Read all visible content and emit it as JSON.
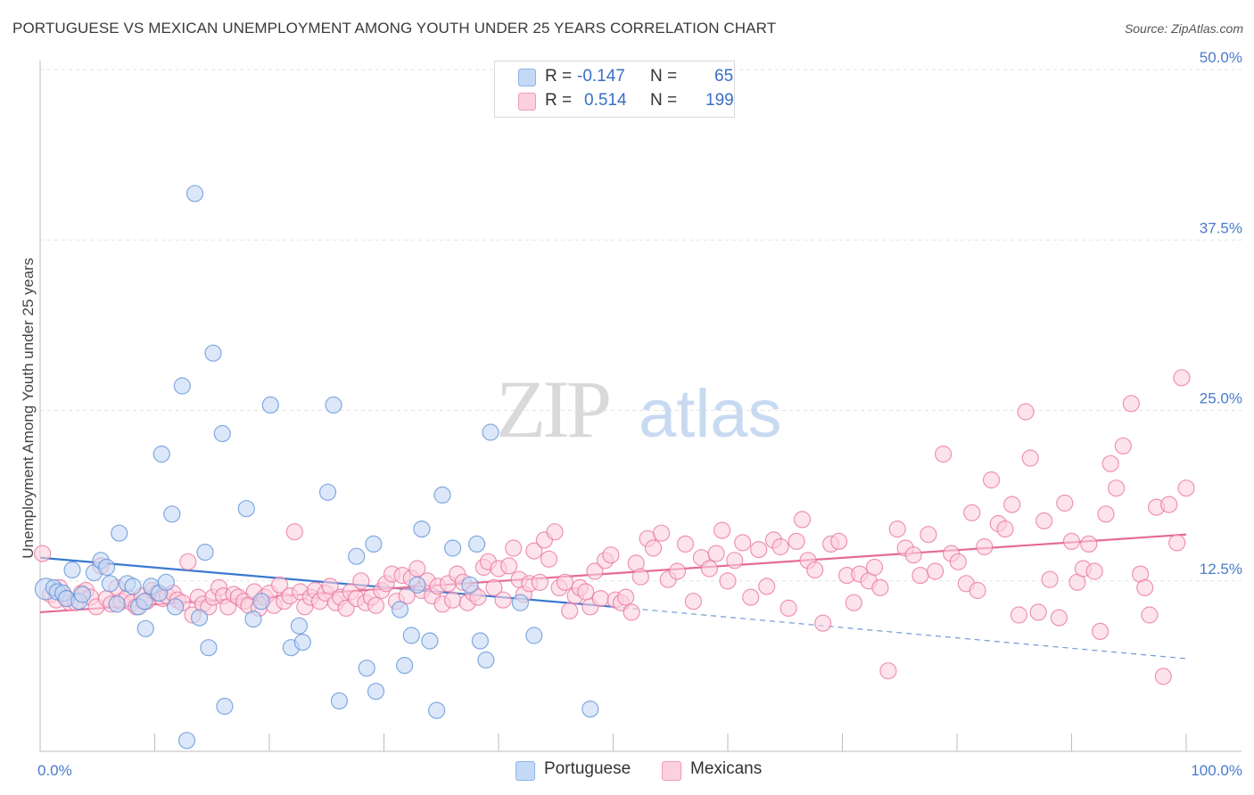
{
  "header": {
    "title": "PORTUGUESE VS MEXICAN UNEMPLOYMENT AMONG YOUTH UNDER 25 YEARS CORRELATION CHART",
    "source": "Source: ZipAtlas.com"
  },
  "legend": {
    "rows": [
      {
        "r_label": "R =",
        "r_value": "-0.147",
        "n_label": "N =",
        "n_value": "65",
        "color": "#8ab4e8",
        "fill": "#c4d9f5"
      },
      {
        "r_label": "R =",
        "r_value": "0.514",
        "n_label": "N =",
        "n_value": "199",
        "color": "#f09ab8",
        "fill": "#fcd0de"
      }
    ],
    "bottom": [
      {
        "label": "Portuguese",
        "color": "#8ab4e8",
        "fill": "#c4d9f5"
      },
      {
        "label": "Mexicans",
        "color": "#f09ab8",
        "fill": "#fcd0de"
      }
    ]
  },
  "watermark": {
    "zip": "ZIP",
    "atlas": "atlas"
  },
  "chart_data": {
    "type": "scatter",
    "title": "PORTUGUESE VS MEXICAN UNEMPLOYMENT AMONG YOUTH UNDER 25 YEARS CORRELATION CHART",
    "xlabel": "",
    "ylabel": "Unemployment Among Youth under 25 years",
    "xlim": [
      0,
      100
    ],
    "ylim": [
      0,
      50
    ],
    "x_tick_labels": [
      "0.0%",
      "100.0%"
    ],
    "y_ticks": [
      12.5,
      25.0,
      37.5,
      50.0
    ],
    "y_tick_labels": [
      "12.5%",
      "25.0%",
      "37.5%",
      "50.0%"
    ],
    "grid": true,
    "legend_position": "top-center",
    "series": [
      {
        "name": "Portuguese",
        "color": "#5b8fd6",
        "fill": "#c4d9f5",
        "trend": {
          "x0": 0,
          "y0": 14.2,
          "x1": 50,
          "y1": 10.6,
          "dash_to_x": 100,
          "dash_to_y": 6.8
        },
        "points": [
          [
            0.5,
            11.9
          ],
          [
            1.2,
            12.0
          ],
          [
            1.5,
            11.7
          ],
          [
            2.0,
            11.6
          ],
          [
            2.3,
            11.2
          ],
          [
            2.8,
            13.3
          ],
          [
            3.4,
            11.0
          ],
          [
            3.7,
            11.5
          ],
          [
            4.7,
            13.1
          ],
          [
            5.3,
            14.0
          ],
          [
            5.8,
            13.5
          ],
          [
            6.1,
            12.3
          ],
          [
            6.7,
            10.8
          ],
          [
            6.9,
            16.0
          ],
          [
            7.6,
            12.3
          ],
          [
            8.1,
            12.1
          ],
          [
            8.6,
            10.6
          ],
          [
            9.1,
            11.0
          ],
          [
            9.2,
            9.0
          ],
          [
            9.7,
            12.1
          ],
          [
            10.4,
            11.6
          ],
          [
            10.6,
            21.8
          ],
          [
            11.0,
            12.4
          ],
          [
            11.5,
            17.4
          ],
          [
            11.8,
            10.6
          ],
          [
            12.4,
            26.8
          ],
          [
            12.8,
            0.8
          ],
          [
            13.5,
            40.9
          ],
          [
            13.9,
            9.8
          ],
          [
            14.4,
            14.6
          ],
          [
            14.7,
            7.6
          ],
          [
            15.1,
            29.2
          ],
          [
            15.9,
            23.3
          ],
          [
            16.1,
            3.3
          ],
          [
            18.0,
            17.8
          ],
          [
            18.6,
            9.7
          ],
          [
            19.3,
            11.0
          ],
          [
            20.1,
            25.4
          ],
          [
            21.9,
            7.6
          ],
          [
            22.6,
            9.2
          ],
          [
            22.9,
            8.0
          ],
          [
            25.1,
            19.0
          ],
          [
            25.6,
            25.4
          ],
          [
            26.1,
            3.7
          ],
          [
            27.6,
            14.3
          ],
          [
            28.5,
            6.1
          ],
          [
            29.1,
            15.2
          ],
          [
            29.3,
            4.4
          ],
          [
            31.4,
            10.4
          ],
          [
            31.8,
            6.3
          ],
          [
            32.4,
            8.5
          ],
          [
            32.9,
            12.2
          ],
          [
            33.3,
            16.3
          ],
          [
            34.0,
            8.1
          ],
          [
            34.6,
            3.0
          ],
          [
            35.1,
            18.8
          ],
          [
            36.0,
            14.9
          ],
          [
            37.5,
            12.2
          ],
          [
            38.1,
            15.2
          ],
          [
            38.4,
            8.1
          ],
          [
            38.9,
            6.7
          ],
          [
            39.3,
            23.4
          ],
          [
            41.9,
            10.9
          ],
          [
            43.1,
            8.5
          ],
          [
            48.0,
            3.1
          ]
        ]
      },
      {
        "name": "Mexicans",
        "color": "#e8739c",
        "fill": "#fcd0de",
        "trend": {
          "x0": 0,
          "y0": 10.2,
          "x1": 100,
          "y1": 15.9
        },
        "points": [
          [
            0.2,
            14.5
          ],
          [
            0.9,
            11.5
          ],
          [
            1.4,
            11.1
          ],
          [
            1.7,
            12.0
          ],
          [
            2.2,
            11.3
          ],
          [
            2.6,
            10.9
          ],
          [
            3.1,
            10.9
          ],
          [
            3.6,
            11.6
          ],
          [
            4.0,
            11.8
          ],
          [
            4.4,
            11.3
          ],
          [
            4.9,
            10.6
          ],
          [
            5.3,
            13.6
          ],
          [
            5.8,
            11.2
          ],
          [
            6.2,
            10.8
          ],
          [
            6.7,
            12.0
          ],
          [
            7.1,
            11.0
          ],
          [
            7.6,
            11.3
          ],
          [
            8.0,
            10.9
          ],
          [
            8.4,
            10.6
          ],
          [
            8.9,
            11.4
          ],
          [
            9.3,
            11.0
          ],
          [
            9.8,
            11.8
          ],
          [
            10.2,
            11.6
          ],
          [
            10.7,
            11.2
          ],
          [
            11.1,
            11.4
          ],
          [
            11.6,
            11.6
          ],
          [
            12.0,
            11.1
          ],
          [
            12.4,
            10.9
          ],
          [
            12.9,
            13.9
          ],
          [
            13.3,
            10.0
          ],
          [
            13.8,
            11.3
          ],
          [
            14.2,
            10.8
          ],
          [
            14.7,
            10.6
          ],
          [
            15.1,
            11.3
          ],
          [
            15.6,
            12.0
          ],
          [
            16.0,
            11.4
          ],
          [
            16.4,
            10.6
          ],
          [
            16.9,
            11.5
          ],
          [
            17.3,
            11.3
          ],
          [
            17.8,
            11.0
          ],
          [
            18.2,
            10.7
          ],
          [
            18.7,
            11.7
          ],
          [
            19.1,
            10.5
          ],
          [
            19.6,
            11.3
          ],
          [
            20.0,
            11.6
          ],
          [
            20.4,
            10.7
          ],
          [
            20.9,
            12.2
          ],
          [
            21.3,
            11.0
          ],
          [
            21.8,
            11.4
          ],
          [
            22.2,
            16.1
          ],
          [
            22.7,
            11.7
          ],
          [
            23.1,
            10.6
          ],
          [
            23.6,
            11.3
          ],
          [
            24.0,
            11.8
          ],
          [
            24.4,
            11.0
          ],
          [
            24.9,
            11.6
          ],
          [
            25.3,
            12.1
          ],
          [
            25.8,
            10.9
          ],
          [
            26.2,
            11.3
          ],
          [
            26.7,
            10.5
          ],
          [
            27.1,
            11.7
          ],
          [
            27.6,
            11.2
          ],
          [
            28.0,
            12.5
          ],
          [
            28.4,
            10.9
          ],
          [
            28.9,
            11.3
          ],
          [
            29.3,
            10.7
          ],
          [
            29.8,
            11.8
          ],
          [
            30.2,
            12.3
          ],
          [
            30.7,
            13.0
          ],
          [
            31.1,
            11.0
          ],
          [
            31.6,
            12.9
          ],
          [
            32.0,
            11.4
          ],
          [
            32.4,
            12.7
          ],
          [
            32.9,
            13.4
          ],
          [
            33.3,
            11.8
          ],
          [
            33.8,
            12.5
          ],
          [
            34.2,
            11.4
          ],
          [
            34.7,
            12.1
          ],
          [
            35.1,
            10.8
          ],
          [
            35.6,
            12.3
          ],
          [
            36.0,
            11.1
          ],
          [
            36.4,
            13.0
          ],
          [
            36.9,
            12.4
          ],
          [
            37.3,
            10.9
          ],
          [
            37.8,
            11.6
          ],
          [
            38.2,
            11.3
          ],
          [
            38.7,
            13.5
          ],
          [
            39.1,
            13.9
          ],
          [
            39.6,
            12.0
          ],
          [
            40.0,
            13.4
          ],
          [
            40.4,
            11.1
          ],
          [
            40.9,
            13.6
          ],
          [
            41.3,
            14.9
          ],
          [
            41.8,
            12.6
          ],
          [
            42.2,
            11.5
          ],
          [
            42.7,
            12.3
          ],
          [
            43.1,
            14.7
          ],
          [
            43.6,
            12.4
          ],
          [
            44.0,
            15.5
          ],
          [
            44.4,
            14.1
          ],
          [
            44.9,
            16.1
          ],
          [
            45.3,
            12.0
          ],
          [
            45.8,
            12.4
          ],
          [
            46.2,
            10.3
          ],
          [
            46.7,
            11.4
          ],
          [
            47.1,
            12.0
          ],
          [
            47.6,
            11.7
          ],
          [
            48.0,
            10.6
          ],
          [
            48.4,
            13.2
          ],
          [
            48.9,
            11.2
          ],
          [
            49.3,
            14.0
          ],
          [
            49.8,
            14.4
          ],
          [
            50.2,
            11.1
          ],
          [
            50.7,
            10.9
          ],
          [
            51.1,
            11.3
          ],
          [
            51.6,
            10.2
          ],
          [
            52.0,
            13.8
          ],
          [
            52.4,
            12.8
          ],
          [
            53.0,
            15.6
          ],
          [
            53.5,
            14.9
          ],
          [
            54.2,
            16.0
          ],
          [
            54.8,
            12.6
          ],
          [
            55.6,
            13.2
          ],
          [
            56.3,
            15.2
          ],
          [
            57.0,
            11.0
          ],
          [
            57.7,
            14.2
          ],
          [
            58.4,
            13.4
          ],
          [
            59.0,
            14.5
          ],
          [
            59.5,
            16.2
          ],
          [
            60.0,
            12.5
          ],
          [
            60.6,
            14.0
          ],
          [
            61.3,
            15.3
          ],
          [
            62.0,
            11.3
          ],
          [
            62.7,
            14.8
          ],
          [
            63.4,
            12.1
          ],
          [
            64.0,
            15.5
          ],
          [
            64.6,
            15.0
          ],
          [
            65.3,
            10.5
          ],
          [
            66.0,
            15.4
          ],
          [
            66.5,
            17.0
          ],
          [
            67.0,
            14.0
          ],
          [
            67.6,
            13.3
          ],
          [
            68.3,
            9.4
          ],
          [
            69.0,
            15.2
          ],
          [
            69.7,
            15.4
          ],
          [
            70.4,
            12.9
          ],
          [
            71.0,
            10.9
          ],
          [
            71.5,
            13.0
          ],
          [
            72.3,
            12.5
          ],
          [
            72.8,
            13.5
          ],
          [
            73.3,
            12.0
          ],
          [
            74.0,
            5.9
          ],
          [
            74.8,
            16.3
          ],
          [
            75.5,
            14.9
          ],
          [
            76.2,
            14.4
          ],
          [
            76.8,
            12.9
          ],
          [
            77.5,
            15.9
          ],
          [
            78.1,
            13.2
          ],
          [
            78.8,
            21.8
          ],
          [
            79.5,
            14.5
          ],
          [
            80.1,
            13.9
          ],
          [
            80.8,
            12.3
          ],
          [
            81.3,
            17.5
          ],
          [
            81.8,
            11.8
          ],
          [
            82.4,
            15.0
          ],
          [
            83.0,
            19.9
          ],
          [
            83.6,
            16.7
          ],
          [
            84.2,
            16.3
          ],
          [
            84.8,
            18.1
          ],
          [
            85.4,
            10.0
          ],
          [
            86.0,
            24.9
          ],
          [
            86.4,
            21.5
          ],
          [
            87.1,
            10.2
          ],
          [
            87.6,
            16.9
          ],
          [
            88.1,
            12.6
          ],
          [
            88.9,
            9.8
          ],
          [
            89.4,
            18.2
          ],
          [
            90.0,
            15.4
          ],
          [
            90.5,
            12.4
          ],
          [
            91.0,
            13.4
          ],
          [
            91.5,
            15.2
          ],
          [
            92.0,
            13.2
          ],
          [
            92.5,
            8.8
          ],
          [
            93.0,
            17.4
          ],
          [
            93.4,
            21.1
          ],
          [
            93.9,
            19.3
          ],
          [
            94.5,
            22.4
          ],
          [
            95.2,
            25.5
          ],
          [
            96.0,
            13.0
          ],
          [
            96.4,
            12.0
          ],
          [
            96.8,
            10.0
          ],
          [
            97.4,
            17.9
          ],
          [
            98.0,
            5.5
          ],
          [
            98.5,
            18.1
          ],
          [
            99.2,
            15.3
          ],
          [
            99.6,
            27.4
          ],
          [
            100.0,
            19.3
          ]
        ]
      }
    ]
  }
}
